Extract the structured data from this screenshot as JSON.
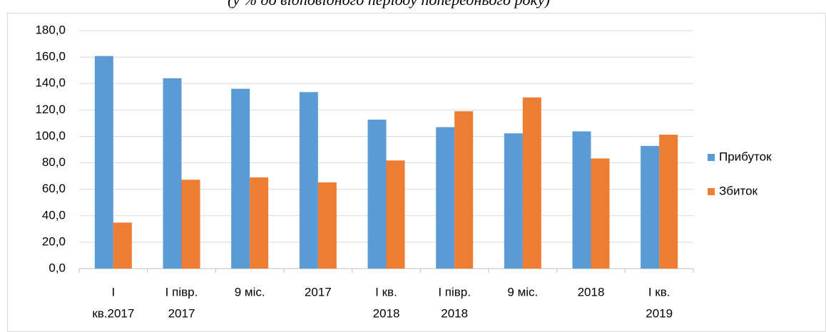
{
  "chart_data": {
    "type": "bar",
    "subtitle": "(у % до відповідного періоду попереднього року)",
    "categories": [
      [
        "I",
        "кв.2017"
      ],
      [
        "I півр.",
        "2017"
      ],
      [
        "9 міс."
      ],
      [
        "2017"
      ],
      [
        "I кв.",
        "2018"
      ],
      [
        "I півр.",
        "2018"
      ],
      [
        "9 міс."
      ],
      [
        "2018"
      ],
      [
        "I кв.",
        "2019"
      ]
    ],
    "series": [
      {
        "name": "Прибуток",
        "color": "#5b9bd5",
        "values": [
          160.8,
          144.0,
          136.0,
          133.5,
          112.7,
          107.0,
          102.3,
          103.8,
          92.8
        ]
      },
      {
        "name": "Збиток",
        "color": "#ed7d31",
        "values": [
          34.8,
          67.2,
          69.0,
          65.2,
          81.8,
          119.0,
          129.5,
          83.3,
          101.3
        ]
      }
    ],
    "ylim": [
      0,
      180
    ],
    "yticks": [
      {
        "value": 0,
        "label": "0,0"
      },
      {
        "value": 20,
        "label": "20,0"
      },
      {
        "value": 40,
        "label": "40,0"
      },
      {
        "value": 60,
        "label": "60,0"
      },
      {
        "value": 80,
        "label": "80,0"
      },
      {
        "value": 100,
        "label": "100,0"
      },
      {
        "value": 120,
        "label": "120,0"
      },
      {
        "value": 140,
        "label": "140,0"
      },
      {
        "value": 160,
        "label": "160,0"
      },
      {
        "value": 180,
        "label": "180,0"
      }
    ],
    "grid": true,
    "legend": "right"
  }
}
